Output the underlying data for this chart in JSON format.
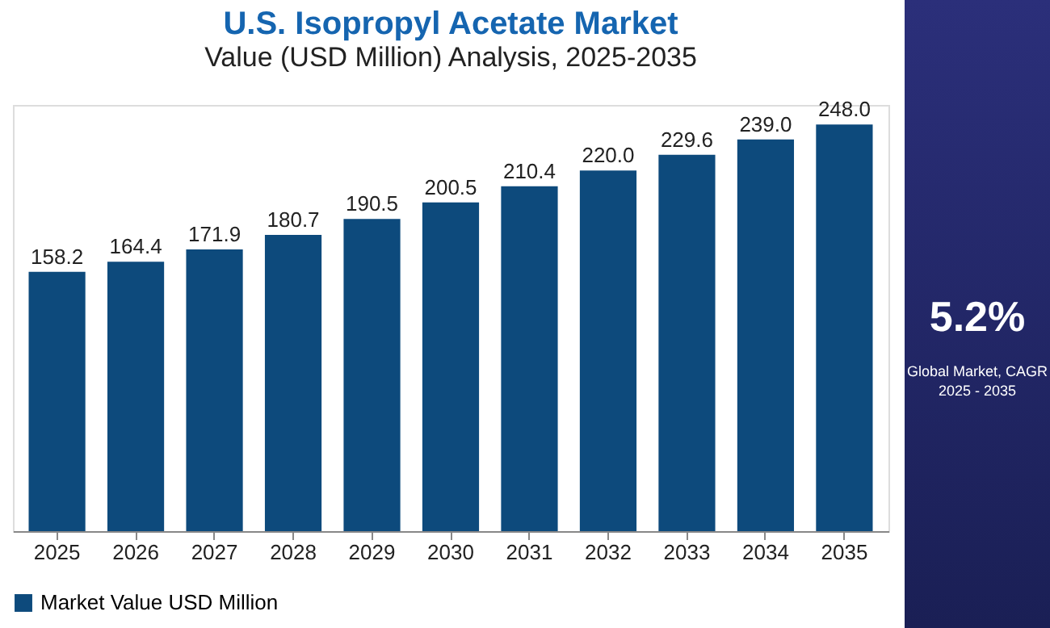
{
  "chart_data": {
    "type": "bar",
    "title": "U.S. Isopropyl Acetate Market",
    "subtitle": "Value (USD Million) Analysis, 2025-2035",
    "categories": [
      "2025",
      "2026",
      "2027",
      "2028",
      "2029",
      "2030",
      "2031",
      "2032",
      "2033",
      "2034",
      "2035"
    ],
    "series": [
      {
        "name": "Market Value USD Million",
        "color": "#0d4a7c",
        "values": [
          158.2,
          164.4,
          171.9,
          180.7,
          190.5,
          200.5,
          210.4,
          220.0,
          229.6,
          239.0,
          248.0
        ],
        "value_labels": [
          "158.2",
          "164.4",
          "171.9",
          "180.7",
          "190.5",
          "200.5",
          "210.4",
          "220.0",
          "229.6",
          "239.0",
          "248.0"
        ]
      }
    ],
    "legend": "bottom",
    "grid": false,
    "annotations": [
      "5.2%",
      "Global Market, CAGR 2025 - 2035"
    ]
  }
}
